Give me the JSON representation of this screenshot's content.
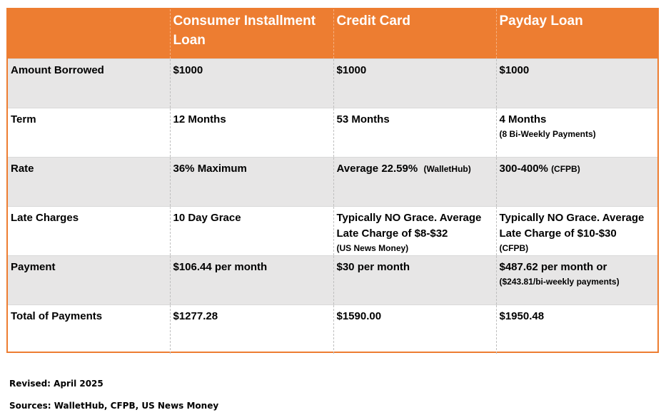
{
  "headers": [
    "",
    "Consumer Installment Loan",
    "Credit Card",
    "Payday Loan"
  ],
  "rows": [
    {
      "label": "Amount Borrowed",
      "installment": "$1000",
      "credit": "$1000",
      "payday": "$1000"
    },
    {
      "label": "Term",
      "installment": "12 Months",
      "credit": "53 Months",
      "payday": "4 Months",
      "payday_note": "(8 Bi-Weekly Payments)"
    },
    {
      "label": "Rate",
      "installment": "36% Maximum",
      "credit": "Average 22.59%",
      "credit_source": "(WalletHub)",
      "payday": "300-400%",
      "payday_source": "(CFPB)"
    },
    {
      "label": "Late Charges",
      "installment": "10 Day Grace",
      "credit": "Typically NO Grace. Average Late Charge of $8-$32",
      "credit_note": "(US News Money)",
      "payday": "Typically NO Grace. Average Late Charge of $10-$30",
      "payday_note": "(CFPB)"
    },
    {
      "label": "Payment",
      "installment": "$106.44 per month",
      "credit": "$30 per month",
      "payday": "$487.62 per month or",
      "payday_note": "($243.81/bi-weekly payments)"
    },
    {
      "label": "Total of Payments",
      "installment": "$1277.28",
      "credit": "$1590.00",
      "payday": "$1950.48"
    }
  ],
  "footer": {
    "revised": "Revised: April 2025",
    "sources": "Sources: WalletHub, CFPB, US News Money"
  },
  "colors": {
    "header_bg": "#ed7d31",
    "shaded_row_bg": "#e7e6e6"
  }
}
